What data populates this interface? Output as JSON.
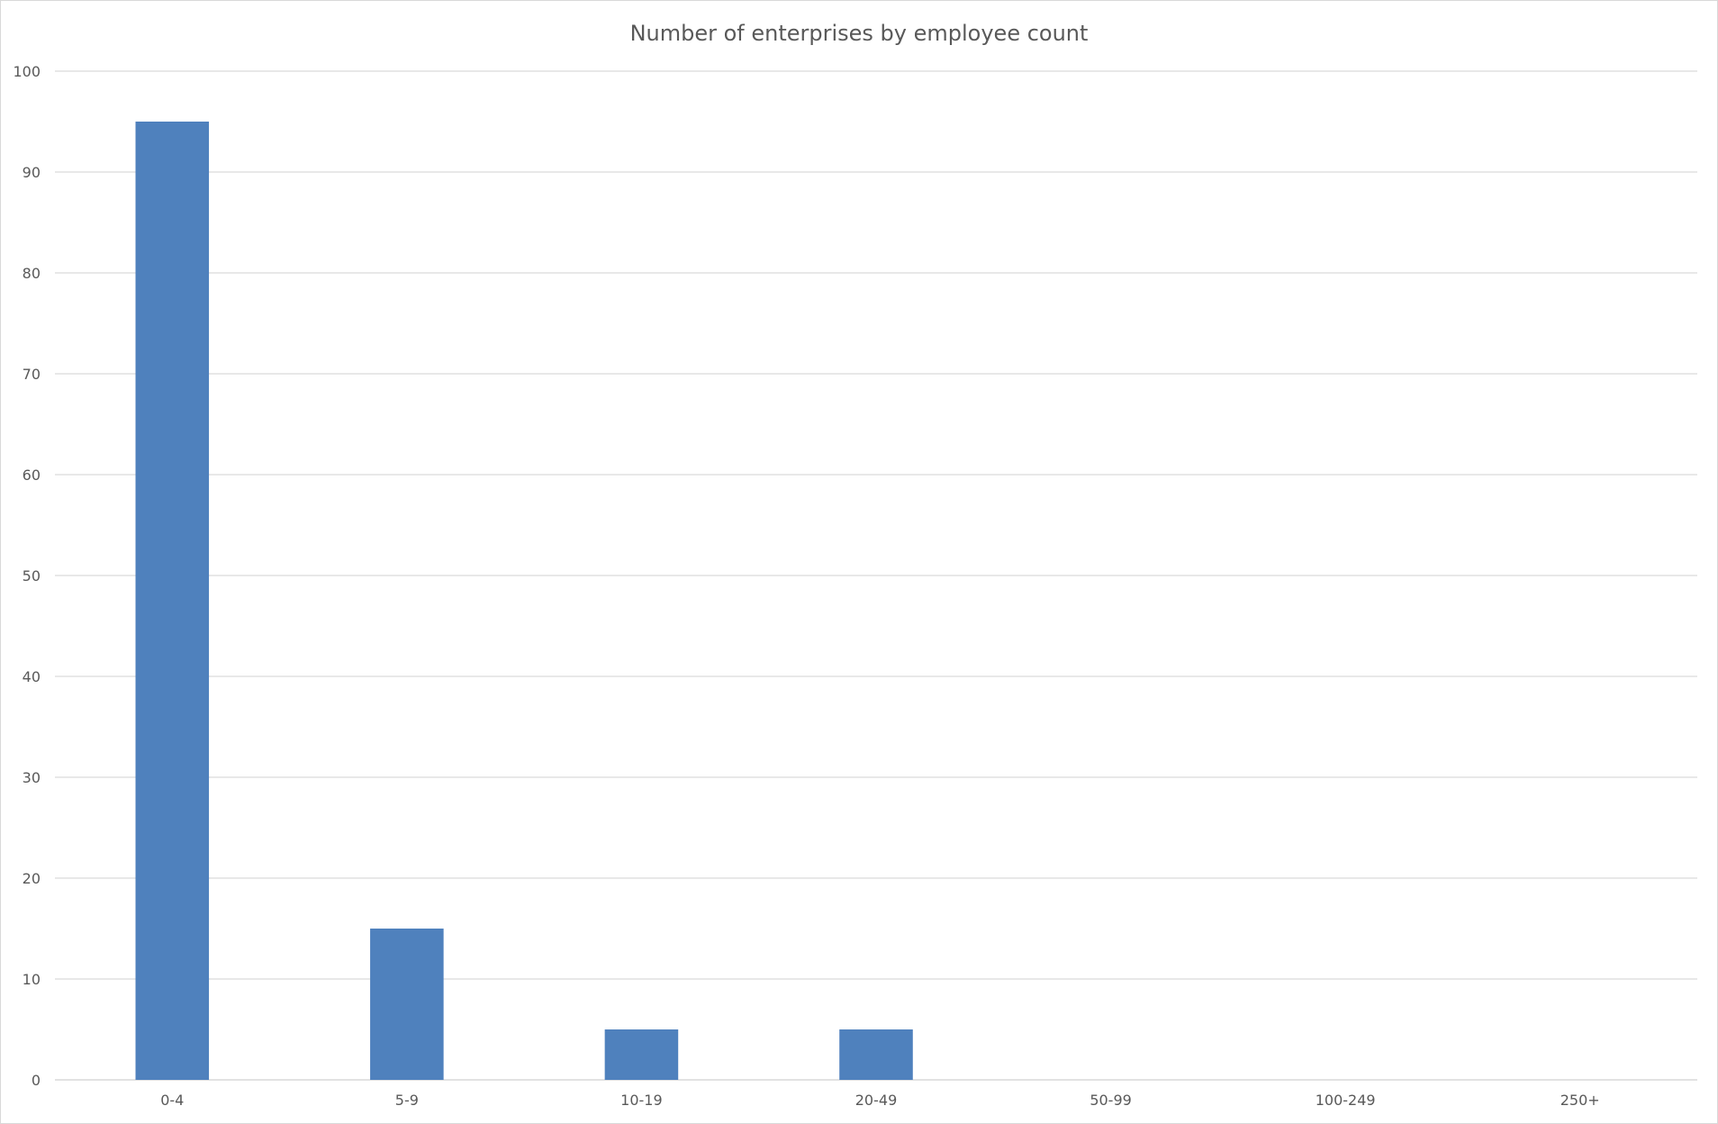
{
  "chart_data": {
    "type": "bar",
    "title": "Number of enterprises by employee count",
    "categories": [
      "0-4",
      "5-9",
      "10-19",
      "20-49",
      "50-99",
      "100-249",
      "250+"
    ],
    "values": [
      95,
      15,
      5,
      5,
      0,
      0,
      0
    ],
    "xlabel": "",
    "ylabel": "",
    "ylim": [
      0,
      100
    ],
    "yticks": [
      0,
      10,
      20,
      30,
      40,
      50,
      60,
      70,
      80,
      90,
      100
    ],
    "grid": true,
    "legend": "none",
    "colors": {
      "bar": "#4f81bd",
      "gridline": "#d9d9d9",
      "text": "#595959"
    }
  }
}
